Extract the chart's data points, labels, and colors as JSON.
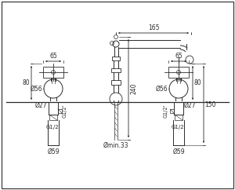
{
  "bg_color": "#ffffff",
  "line_color": "#2a2a2a",
  "font_size": 5.5,
  "fig_width": 3.0,
  "fig_height": 2.42,
  "dpi": 100,
  "annotations": {
    "top_width": "165",
    "center_height": "240",
    "left_knob_width": "65",
    "right_knob_width": "65",
    "left_d56": "Ø56",
    "right_d56": "Ø56",
    "left_d27": "Ø27",
    "right_d27": "Ø27",
    "left_d59": "Ø59",
    "right_d59": "Ø59",
    "left_g12_side": "G1/2'",
    "left_g12_bot": "G1/2'",
    "right_g12_side": "G1/2'",
    "right_g12_bot": "G1/2'",
    "center_dmin": "Ømin.33",
    "left_dim_80": "80",
    "right_dim_80": "80",
    "right_dim_150": "150"
  }
}
